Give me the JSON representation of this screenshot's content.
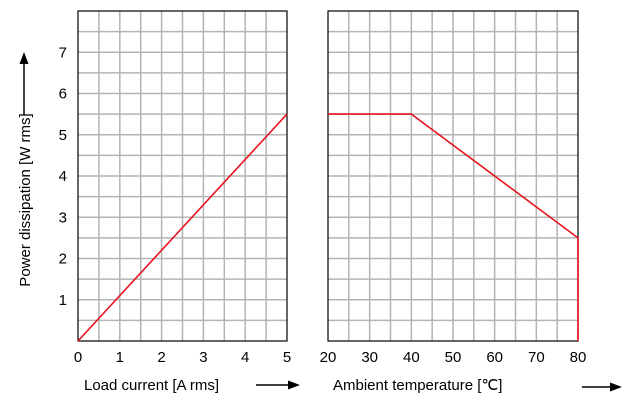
{
  "chart_data": [
    {
      "type": "line",
      "panel": "left",
      "xlabel": "Load current [A rms]",
      "ylabel": "Power dissipation [W rms]",
      "xlim": [
        0,
        5
      ],
      "ylim": [
        0,
        8
      ],
      "x_ticks": [
        "0",
        "1",
        "2",
        "3",
        "4",
        "5"
      ],
      "y_ticks": [
        "1",
        "2",
        "3",
        "4",
        "5",
        "6",
        "7"
      ],
      "grid": true,
      "series": [
        {
          "color": "#e8141e",
          "x": [
            0,
            5
          ],
          "y": [
            0,
            5.5
          ]
        }
      ]
    },
    {
      "type": "line",
      "panel": "right",
      "xlabel": "Ambient temperature [℃]",
      "xlim": [
        20,
        80
      ],
      "ylim": [
        0,
        8
      ],
      "x_ticks": [
        "20",
        "30",
        "40",
        "50",
        "60",
        "70",
        "80"
      ],
      "grid": true,
      "series": [
        {
          "color": "#e8141e",
          "x": [
            20,
            40,
            80,
            80
          ],
          "y": [
            5.5,
            5.5,
            2.5,
            0
          ]
        }
      ]
    }
  ],
  "colors": {
    "grid": "#b4b4b4",
    "frame": "#000000",
    "curve": "#e8141e"
  }
}
